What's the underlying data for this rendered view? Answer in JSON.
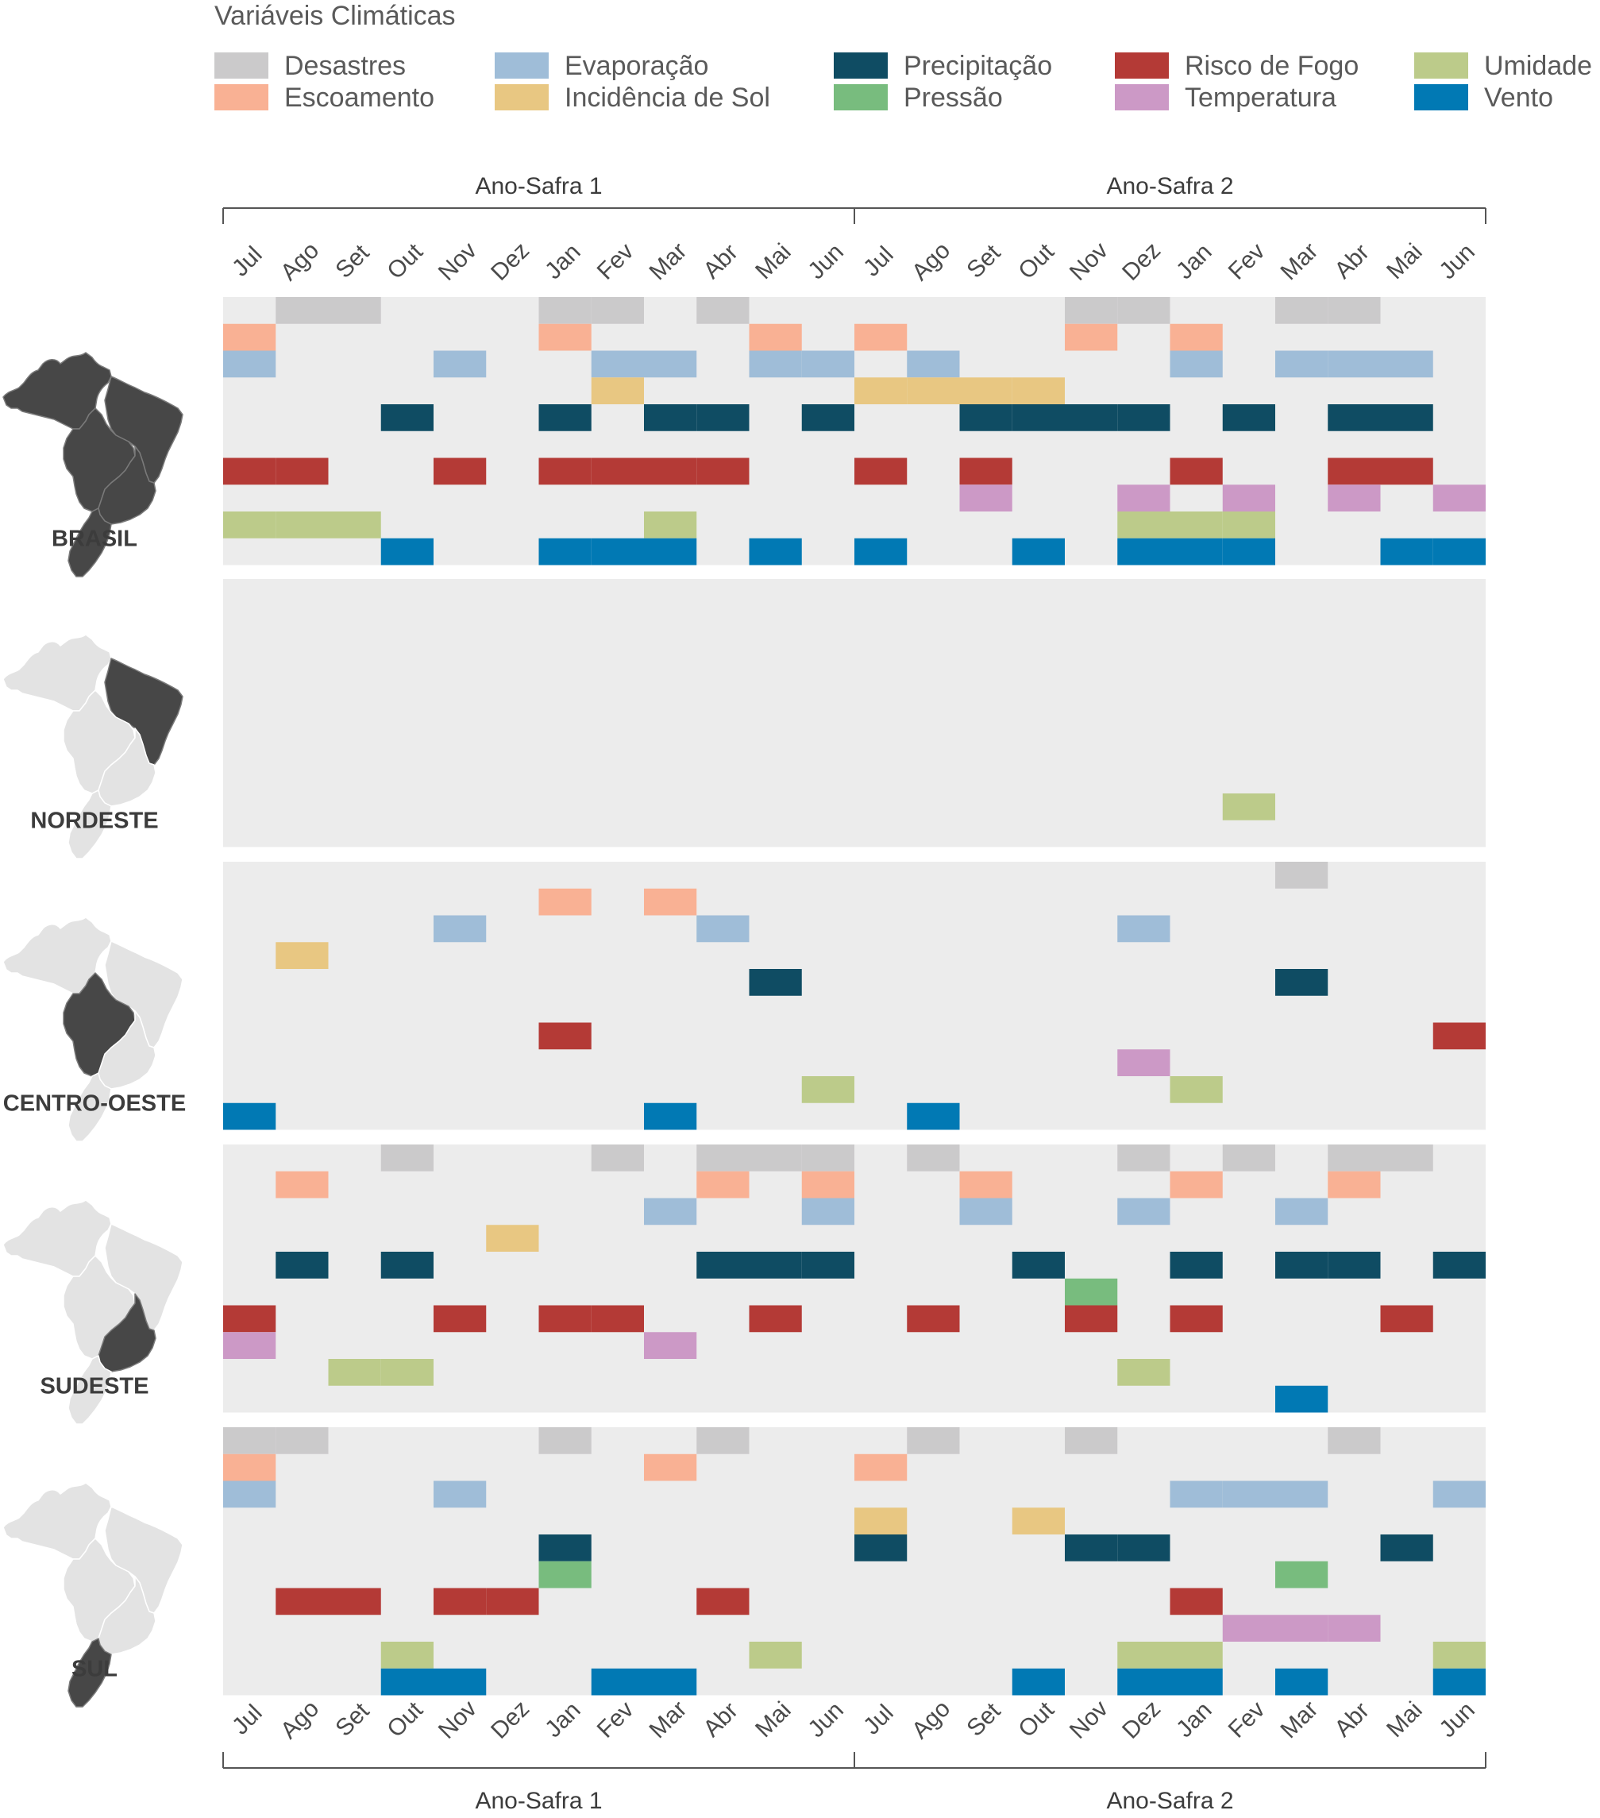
{
  "chart_data": {
    "type": "heatmap",
    "legend_title": "Variáveis Climáticas",
    "variables": [
      {
        "name": "Desastres",
        "color": "#cbcacb"
      },
      {
        "name": "Escoamento",
        "color": "#f9b194"
      },
      {
        "name": "Evaporação",
        "color": "#9fbdd8"
      },
      {
        "name": "Incidência de Sol",
        "color": "#e8c782"
      },
      {
        "name": "Precipitação",
        "color": "#0f4c63"
      },
      {
        "name": "Pressão",
        "color": "#78bc7e"
      },
      {
        "name": "Risco de Fogo",
        "color": "#b43a36"
      },
      {
        "name": "Temperatura",
        "color": "#cc99c6"
      },
      {
        "name": "Umidade",
        "color": "#bccb8a"
      },
      {
        "name": "Vento",
        "color": "#0179b4"
      }
    ],
    "months": [
      "Jul",
      "Ago",
      "Set",
      "Out",
      "Nov",
      "Dez",
      "Jan",
      "Fev",
      "Mar",
      "Abr",
      "Mai",
      "Jun",
      "Jul",
      "Ago",
      "Set",
      "Out",
      "Nov",
      "Dez",
      "Jan",
      "Fev",
      "Mar",
      "Abr",
      "Mai",
      "Jun"
    ],
    "crop_years": [
      "Ano-Safra 1",
      "Ano-Safra 2"
    ],
    "regions": [
      {
        "name": "BRASIL",
        "active_months": {
          "Desastres": [
            1,
            2,
            6,
            7,
            9,
            16,
            17,
            20,
            21
          ],
          "Escoamento": [
            0,
            6,
            10,
            12,
            16,
            18
          ],
          "Evaporação": [
            0,
            4,
            7,
            8,
            10,
            11,
            13,
            18,
            20,
            21,
            22
          ],
          "Incidência de Sol": [
            7,
            12,
            13,
            14,
            15
          ],
          "Precipitação": [
            3,
            6,
            8,
            9,
            11,
            14,
            15,
            16,
            17,
            19,
            21,
            22
          ],
          "Pressão": [],
          "Risco de Fogo": [
            0,
            1,
            4,
            6,
            7,
            8,
            9,
            12,
            14,
            18,
            21,
            22
          ],
          "Temperatura": [
            14,
            17,
            19,
            21,
            23
          ],
          "Umidade": [
            0,
            1,
            2,
            8,
            17,
            18,
            19
          ],
          "Vento": [
            3,
            6,
            7,
            8,
            10,
            12,
            15,
            17,
            18,
            19,
            22,
            23
          ]
        }
      },
      {
        "name": "NORDESTE",
        "active_months": {
          "Desastres": [],
          "Escoamento": [],
          "Evaporação": [],
          "Incidência de Sol": [],
          "Precipitação": [],
          "Pressão": [],
          "Risco de Fogo": [],
          "Temperatura": [],
          "Umidade": [
            19
          ],
          "Vento": []
        }
      },
      {
        "name": "CENTRO-OESTE",
        "active_months": {
          "Desastres": [
            20
          ],
          "Escoamento": [
            6,
            8
          ],
          "Evaporação": [
            4,
            9,
            17
          ],
          "Incidência de Sol": [
            1
          ],
          "Precipitação": [
            10,
            20
          ],
          "Pressão": [],
          "Risco de Fogo": [
            6,
            23
          ],
          "Temperatura": [
            17
          ],
          "Umidade": [
            11,
            18
          ],
          "Vento": [
            0,
            8,
            13
          ]
        }
      },
      {
        "name": "SUDESTE",
        "active_months": {
          "Desastres": [
            3,
            7,
            9,
            10,
            11,
            13,
            17,
            19,
            21,
            22
          ],
          "Escoamento": [
            1,
            9,
            11,
            14,
            18,
            21
          ],
          "Evaporação": [
            8,
            11,
            14,
            17,
            20
          ],
          "Incidência de Sol": [
            5
          ],
          "Precipitação": [
            1,
            3,
            9,
            10,
            11,
            15,
            18,
            20,
            21,
            23
          ],
          "Pressão": [
            16
          ],
          "Risco de Fogo": [
            0,
            4,
            6,
            7,
            10,
            13,
            16,
            18,
            22
          ],
          "Temperatura": [
            0,
            8
          ],
          "Umidade": [
            2,
            3,
            17
          ],
          "Vento": [
            20
          ]
        }
      },
      {
        "name": "SUL",
        "active_months": {
          "Desastres": [
            0,
            1,
            6,
            9,
            13,
            16,
            21
          ],
          "Escoamento": [
            0,
            8,
            12
          ],
          "Evaporação": [
            0,
            4,
            18,
            19,
            20,
            23
          ],
          "Incidência de Sol": [
            12,
            15
          ],
          "Precipitação": [
            6,
            12,
            16,
            17,
            22
          ],
          "Pressão": [
            6,
            20
          ],
          "Risco de Fogo": [
            1,
            2,
            4,
            5,
            9,
            18
          ],
          "Temperatura": [
            19,
            20,
            21
          ],
          "Umidade": [
            3,
            10,
            17,
            18,
            23
          ],
          "Vento": [
            3,
            4,
            7,
            8,
            15,
            17,
            18,
            20,
            23
          ]
        }
      }
    ]
  }
}
